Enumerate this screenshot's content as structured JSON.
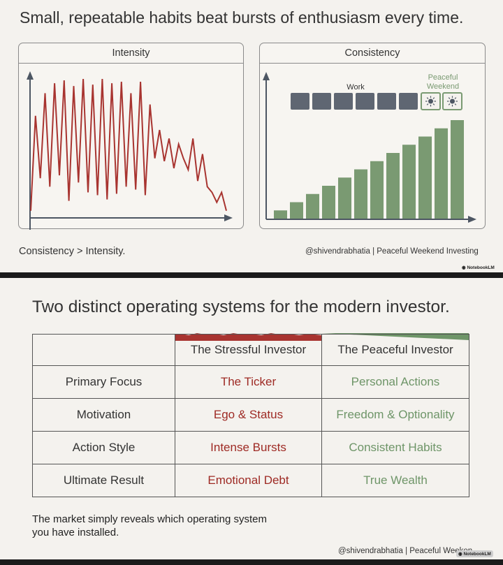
{
  "slide1": {
    "title": "Small, repeatable habits beat bursts of enthusiasm every time.",
    "intensity_panel": {
      "title": "Intensity"
    },
    "consistency_panel": {
      "title": "Consistency",
      "work_label": "Work",
      "weekend_label_line1": "Peaceful",
      "weekend_label_line2": "Weekend",
      "work_blocks": 6,
      "weekend_blocks": 2
    },
    "caption": "Consistency > Intensity.",
    "credit": "@shivendrabhatia | Peaceful Weekend Investing",
    "logo": "NotebookLM"
  },
  "chart_data": [
    {
      "type": "line",
      "title": "Intensity",
      "series": [
        {
          "values": [
            0.05,
            0.72,
            0.28,
            0.88,
            0.22,
            0.95,
            0.3,
            0.97,
            0.12,
            0.93,
            0.25,
            0.98,
            0.18,
            0.94,
            0.16,
            0.98,
            0.13,
            0.95,
            0.17,
            0.96,
            0.22,
            0.88,
            0.2,
            0.96,
            0.16,
            0.8,
            0.42,
            0.62,
            0.4,
            0.56,
            0.35,
            0.52,
            0.42,
            0.34,
            0.56,
            0.26,
            0.45,
            0.22,
            0.18,
            0.11,
            0.18,
            0.05
          ]
        }
      ],
      "color": "#a83430",
      "ylim": [
        0,
        1
      ]
    },
    {
      "type": "bar",
      "title": "Consistency",
      "values": [
        1,
        2,
        3,
        4,
        5,
        6,
        7,
        8,
        9,
        10,
        11,
        12
      ],
      "color": "#7a9a72",
      "ylim": [
        0,
        12
      ]
    }
  ],
  "slide2": {
    "title": "Two distinct operating systems for the modern investor.",
    "headers": [
      "",
      "The Stressful Investor",
      "The Peaceful Investor"
    ],
    "rows": [
      {
        "label": "Primary Focus",
        "stressful": "The Ticker",
        "peaceful": "Personal Actions"
      },
      {
        "label": "Motivation",
        "stressful": "Ego & Status",
        "peaceful": "Freedom & Optionality"
      },
      {
        "label": "Action Style",
        "stressful": "Intense Bursts",
        "peaceful": "Consistent Habits"
      },
      {
        "label": "Ultimate Result",
        "stressful": "Emotional Debt",
        "peaceful": "True Wealth"
      }
    ],
    "footer": "The market simply reveals which operating system you have installed.",
    "credit": "@shivendrabhatia | Peaceful Weeken",
    "logo": "NotebookLM"
  },
  "colors": {
    "stressful": "#9e2a24",
    "peaceful": "#6e9568",
    "bar": "#7a9a72",
    "work_block": "#5f6672"
  }
}
